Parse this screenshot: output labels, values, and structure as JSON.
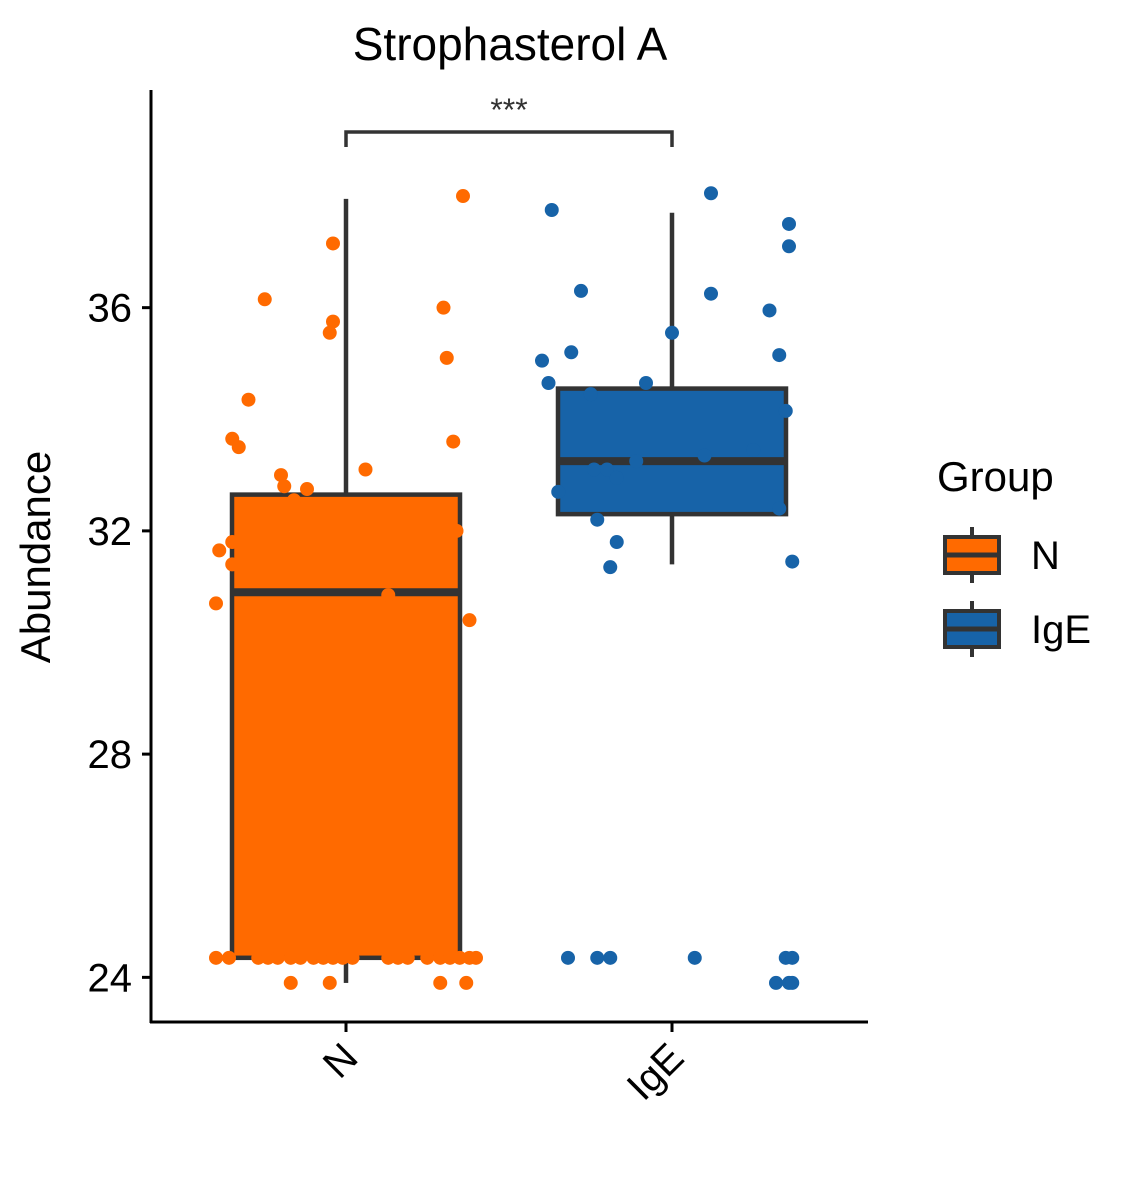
{
  "chart_data": {
    "type": "box",
    "title": "Strophasterol A",
    "xlabel": "",
    "ylabel": "Abundance",
    "ylim": [
      23.2,
      39.9
    ],
    "yticks": [
      24,
      28,
      32,
      36
    ],
    "categories": [
      "N",
      "IgE"
    ],
    "colors": {
      "N": "#FF6A00",
      "IgE": "#1763A8",
      "outline": "#333333"
    },
    "legend": {
      "title": "Group",
      "entries": [
        "N",
        "IgE"
      ],
      "position": "right"
    },
    "significance": {
      "label": "***",
      "between": [
        "N",
        "IgE"
      ]
    },
    "boxes": [
      {
        "category": "N",
        "min": 23.9,
        "q1": 24.35,
        "median": 30.9,
        "q3": 32.65,
        "max": 37.95
      },
      {
        "category": "IgE",
        "min": 31.4,
        "q1": 32.3,
        "median": 33.25,
        "q3": 34.55,
        "max": 37.7
      }
    ],
    "points": {
      "N": [
        [
          -0.4,
          24.35
        ],
        [
          -0.36,
          24.35
        ],
        [
          -0.27,
          24.35
        ],
        [
          -0.24,
          24.35
        ],
        [
          -0.21,
          24.35
        ],
        [
          -0.17,
          24.35
        ],
        [
          -0.14,
          24.35
        ],
        [
          -0.1,
          24.35
        ],
        [
          -0.07,
          24.35
        ],
        [
          -0.04,
          24.35
        ],
        [
          -0.01,
          24.35
        ],
        [
          0.02,
          24.35
        ],
        [
          0.13,
          24.35
        ],
        [
          0.16,
          24.35
        ],
        [
          0.19,
          24.35
        ],
        [
          0.25,
          24.35
        ],
        [
          0.29,
          24.35
        ],
        [
          0.32,
          24.35
        ],
        [
          0.35,
          24.35
        ],
        [
          0.38,
          24.35
        ],
        [
          0.4,
          24.35
        ],
        [
          -0.17,
          23.9
        ],
        [
          -0.05,
          23.9
        ],
        [
          0.29,
          23.9
        ],
        [
          0.37,
          23.9
        ],
        [
          -0.04,
          37.15
        ],
        [
          0.36,
          38.0
        ],
        [
          -0.25,
          36.15
        ],
        [
          -0.04,
          35.75
        ],
        [
          -0.05,
          35.55
        ],
        [
          0.3,
          36.0
        ],
        [
          0.31,
          35.1
        ],
        [
          -0.3,
          34.35
        ],
        [
          -0.35,
          33.65
        ],
        [
          -0.33,
          33.5
        ],
        [
          0.33,
          33.6
        ],
        [
          0.06,
          33.1
        ],
        [
          -0.2,
          33.0
        ],
        [
          -0.19,
          32.8
        ],
        [
          -0.12,
          32.75
        ],
        [
          -0.16,
          32.55
        ],
        [
          -0.35,
          31.8
        ],
        [
          -0.39,
          31.65
        ],
        [
          -0.35,
          31.4
        ],
        [
          -0.4,
          30.7
        ],
        [
          0.13,
          30.85
        ],
        [
          0.34,
          32.0
        ],
        [
          0.38,
          30.4
        ]
      ],
      "IgE": [
        [
          -0.37,
          37.75
        ],
        [
          0.12,
          38.05
        ],
        [
          0.36,
          37.1
        ],
        [
          0.36,
          37.5
        ],
        [
          -0.28,
          36.3
        ],
        [
          0.12,
          36.25
        ],
        [
          0.3,
          35.95
        ],
        [
          -0.31,
          35.2
        ],
        [
          -0.4,
          35.05
        ],
        [
          0.0,
          35.55
        ],
        [
          0.33,
          35.15
        ],
        [
          -0.38,
          34.65
        ],
        [
          -0.08,
          34.65
        ],
        [
          -0.25,
          34.45
        ],
        [
          0.35,
          34.15
        ],
        [
          -0.35,
          32.7
        ],
        [
          -0.24,
          33.1
        ],
        [
          -0.2,
          33.1
        ],
        [
          -0.17,
          32.95
        ],
        [
          -0.11,
          33.25
        ],
        [
          0.1,
          33.35
        ],
        [
          0.25,
          33.45
        ],
        [
          -0.23,
          32.2
        ],
        [
          -0.17,
          31.8
        ],
        [
          -0.19,
          31.35
        ],
        [
          0.37,
          31.45
        ],
        [
          0.33,
          32.4
        ],
        [
          -0.32,
          24.35
        ],
        [
          -0.23,
          24.35
        ],
        [
          -0.19,
          24.35
        ],
        [
          0.07,
          24.35
        ],
        [
          0.35,
          24.35
        ],
        [
          0.37,
          24.35
        ],
        [
          0.32,
          23.9
        ],
        [
          0.36,
          23.9
        ],
        [
          0.37,
          23.9
        ]
      ]
    }
  }
}
